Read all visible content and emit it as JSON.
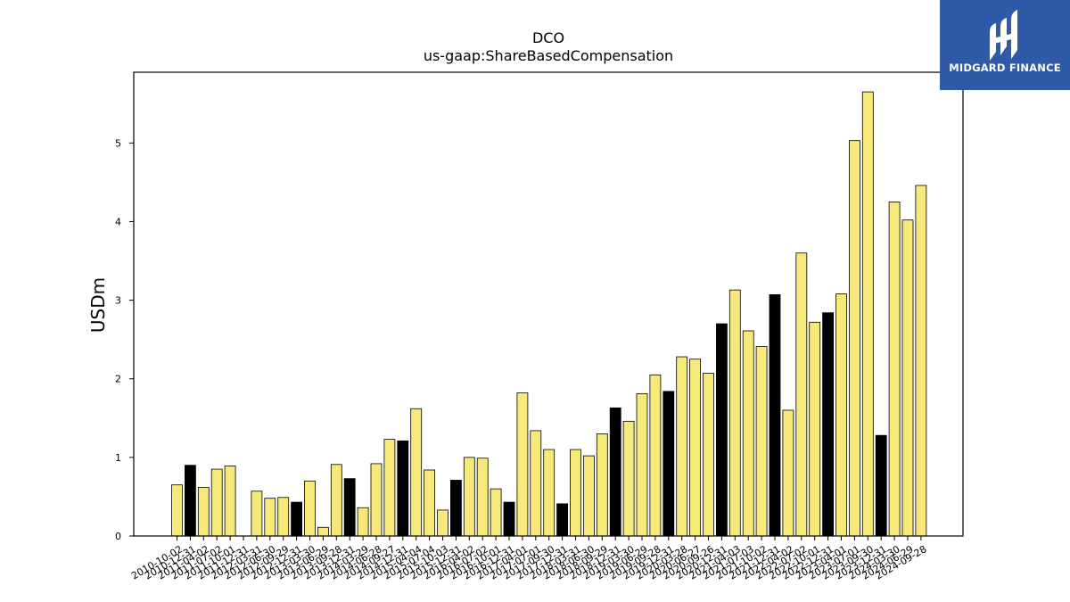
{
  "chart_data": {
    "type": "bar",
    "title": "DCO",
    "subtitle": "us-gaap:ShareBasedCompensation",
    "xlabel": "",
    "ylabel": "USDm",
    "ylim": [
      0,
      5.9
    ],
    "yticks": [
      0,
      1,
      2,
      3,
      4,
      5
    ],
    "colors": {
      "default": "#f7e87a",
      "highlight": "#000000",
      "edge": "#000000"
    },
    "categories": [
      "2010-10-02",
      "2010-12-31",
      "2011-04-02",
      "2011-07-02",
      "2011-10-01",
      "2011-12-31",
      "2012-03-31",
      "2012-06-30",
      "2012-09-29",
      "2012-12-31",
      "2013-03-30",
      "2013-06-29",
      "2013-09-28",
      "2013-12-31",
      "2014-03-29",
      "2014-06-28",
      "2014-09-27",
      "2014-12-31",
      "2015-04-04",
      "2015-07-04",
      "2015-10-03",
      "2015-12-31",
      "2016-04-02",
      "2016-07-02",
      "2016-10-01",
      "2016-12-31",
      "2017-04-01",
      "2017-07-01",
      "2017-09-30",
      "2017-12-31",
      "2018-03-31",
      "2018-06-30",
      "2018-09-29",
      "2018-12-31",
      "2019-03-30",
      "2019-06-29",
      "2019-09-28",
      "2019-12-31",
      "2020-03-28",
      "2020-06-27",
      "2020-09-26",
      "2020-12-31",
      "2021-04-03",
      "2021-07-03",
      "2021-10-02",
      "2021-12-31",
      "2022-04-02",
      "2022-07-02",
      "2022-10-01",
      "2022-12-31",
      "2023-04-01",
      "2023-07-01",
      "2023-09-30",
      "2023-12-31",
      "2024-03-30",
      "2024-06-29",
      "2024-09-28"
    ],
    "values": [
      0.65,
      0.9,
      0.62,
      0.85,
      0.89,
      0,
      0.57,
      0.48,
      0.49,
      0.43,
      0.7,
      0.11,
      0.91,
      0.73,
      0.36,
      0.92,
      1.23,
      1.21,
      1.62,
      0.84,
      0.33,
      0.71,
      1.0,
      0.99,
      0.6,
      0.43,
      1.82,
      1.34,
      1.1,
      0.41,
      1.1,
      1.02,
      1.3,
      1.63,
      1.46,
      1.81,
      2.05,
      1.84,
      2.28,
      2.25,
      2.07,
      2.7,
      3.13,
      2.61,
      2.41,
      3.07,
      1.6,
      3.6,
      2.72,
      2.84,
      3.08,
      5.03,
      5.65,
      1.28,
      4.25,
      4.02,
      4.46
    ],
    "highlight": [
      false,
      true,
      false,
      false,
      false,
      false,
      false,
      false,
      false,
      true,
      false,
      false,
      false,
      true,
      false,
      false,
      false,
      true,
      false,
      false,
      false,
      true,
      false,
      false,
      false,
      true,
      false,
      false,
      false,
      true,
      false,
      false,
      false,
      true,
      false,
      false,
      false,
      true,
      false,
      false,
      false,
      true,
      false,
      false,
      false,
      true,
      false,
      false,
      false,
      true,
      false,
      false,
      false,
      true,
      false,
      false,
      false
    ]
  },
  "logo": {
    "text": "MIDGARD FINANCE"
  }
}
